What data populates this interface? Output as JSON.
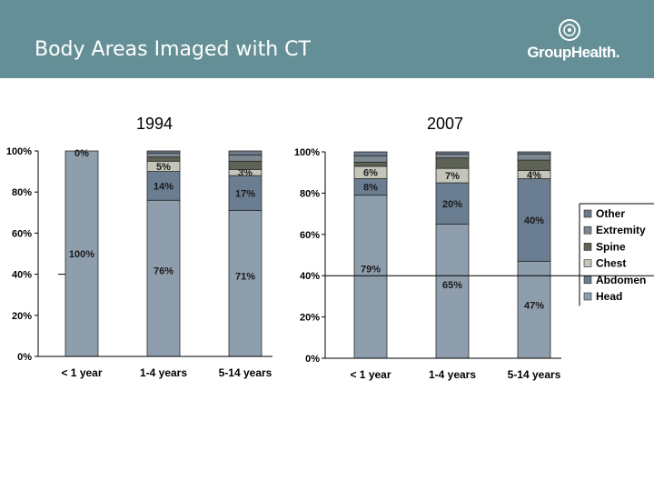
{
  "slide": {
    "title": "Body Areas Imaged with CT",
    "brand": "GroupHealth.",
    "year_1994": "1994",
    "year_2007": "2007"
  },
  "colors": {
    "header": "#658f96",
    "Head": "#8e9ead",
    "Abdomen": "#6a7d91",
    "Chest": "#c5c6ba",
    "Spine": "#5f6356",
    "Extremity": "#7c8790",
    "Other": "#6b7a8a"
  },
  "chart_data": [
    {
      "type": "bar",
      "stacked": true,
      "title": "1994",
      "categories": [
        "< 1 year",
        "1-4 years",
        "5-14 years"
      ],
      "ylim": [
        0,
        100
      ],
      "yticks": [
        "0%",
        "20%",
        "40%",
        "60%",
        "80%",
        "100%"
      ],
      "series": [
        {
          "name": "Head",
          "values": [
            100,
            76,
            71
          ],
          "labels": [
            "100%",
            "76%",
            "71%"
          ]
        },
        {
          "name": "Abdomen",
          "values": [
            0,
            14,
            17
          ],
          "labels": [
            "",
            "14%",
            "17%"
          ]
        },
        {
          "name": "Chest",
          "values": [
            0,
            5,
            3
          ],
          "labels": [
            "0%",
            "5%",
            "3%"
          ]
        },
        {
          "name": "Spine",
          "values": [
            0,
            2,
            4
          ],
          "labels": [
            "",
            "",
            ""
          ]
        },
        {
          "name": "Extremity",
          "values": [
            0,
            2,
            3
          ],
          "labels": [
            "",
            "",
            ""
          ]
        },
        {
          "name": "Other",
          "values": [
            0,
            1,
            2
          ],
          "labels": [
            "",
            "",
            ""
          ]
        }
      ]
    },
    {
      "type": "bar",
      "stacked": true,
      "title": "2007",
      "categories": [
        "< 1 year",
        "1-4 years",
        "5-14 years"
      ],
      "ylim": [
        0,
        100
      ],
      "yticks": [
        "0%",
        "20%",
        "40%",
        "60%",
        "80%",
        "100%"
      ],
      "series": [
        {
          "name": "Head",
          "values": [
            79,
            65,
            47
          ],
          "labels": [
            "79%",
            "65%",
            "47%"
          ]
        },
        {
          "name": "Abdomen",
          "values": [
            8,
            20,
            40
          ],
          "labels": [
            "8%",
            "20%",
            "40%"
          ]
        },
        {
          "name": "Chest",
          "values": [
            6,
            7,
            4
          ],
          "labels": [
            "6%",
            "7%",
            "4%"
          ]
        },
        {
          "name": "Spine",
          "values": [
            2,
            5,
            5
          ],
          "labels": [
            "",
            "",
            ""
          ]
        },
        {
          "name": "Extremity",
          "values": [
            3,
            2,
            3
          ],
          "labels": [
            "",
            "",
            ""
          ]
        },
        {
          "name": "Other",
          "values": [
            2,
            1,
            1
          ],
          "labels": [
            "",
            "",
            ""
          ]
        }
      ],
      "legend": [
        "Other",
        "Extremity",
        "Spine",
        "Chest",
        "Abdomen",
        "Head"
      ]
    }
  ]
}
